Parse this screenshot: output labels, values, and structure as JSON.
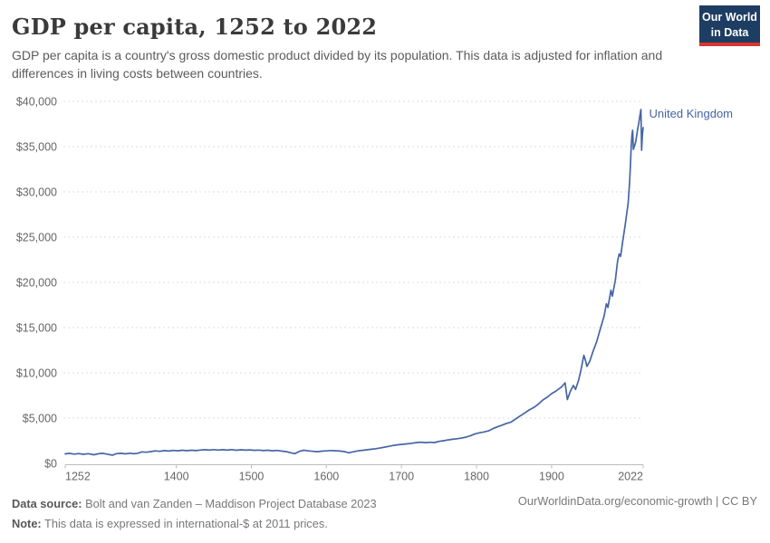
{
  "header": {
    "title": "GDP per capita, 1252 to 2022",
    "subtitle": "GDP per capita is a country's gross domestic product divided by its population. This data is adjusted for inflation and differences in living costs between countries.",
    "logo_line1": "Our World",
    "logo_line2": "in Data",
    "logo_bg": "#1d3d63",
    "logo_bar": "#d8352f"
  },
  "footer": {
    "data_source_label": "Data source:",
    "data_source": "Bolt and van Zanden – Maddison Project Database 2023",
    "note_label": "Note:",
    "note": "This data is expressed in international-$ at 2011 prices.",
    "attribution": "OurWorldinData.org/economic-growth | CC BY"
  },
  "chart_data": {
    "type": "line",
    "title": "GDP per capita, 1252 to 2022",
    "xlabel": "",
    "ylabel": "",
    "grid": "horizontal-dashed",
    "legend_position": "line-end-label",
    "x_axis": {
      "min": 1252,
      "max": 2022,
      "ticks": [
        {
          "v": 1252,
          "label": "1252"
        },
        {
          "v": 1400,
          "label": "1400"
        },
        {
          "v": 1500,
          "label": "1500"
        },
        {
          "v": 1600,
          "label": "1600"
        },
        {
          "v": 1700,
          "label": "1700"
        },
        {
          "v": 1800,
          "label": "1800"
        },
        {
          "v": 1900,
          "label": "1900"
        },
        {
          "v": 2022,
          "label": "2022"
        }
      ]
    },
    "y_axis": {
      "min": 0,
      "max": 40000,
      "ticks": [
        {
          "v": 0,
          "label": "$0"
        },
        {
          "v": 5000,
          "label": "$5,000"
        },
        {
          "v": 10000,
          "label": "$10,000"
        },
        {
          "v": 15000,
          "label": "$15,000"
        },
        {
          "v": 20000,
          "label": "$20,000"
        },
        {
          "v": 25000,
          "label": "$25,000"
        },
        {
          "v": 30000,
          "label": "$30,000"
        },
        {
          "v": 35000,
          "label": "$35,000"
        },
        {
          "v": 40000,
          "label": "$40,000"
        }
      ]
    },
    "series": [
      {
        "name": "United Kingdom",
        "color": "#4565a4",
        "points": [
          [
            1252,
            1050
          ],
          [
            1258,
            1110
          ],
          [
            1264,
            1020
          ],
          [
            1270,
            1080
          ],
          [
            1276,
            1000
          ],
          [
            1283,
            1070
          ],
          [
            1290,
            950
          ],
          [
            1296,
            1060
          ],
          [
            1302,
            1110
          ],
          [
            1308,
            1020
          ],
          [
            1315,
            900
          ],
          [
            1320,
            1070
          ],
          [
            1326,
            1110
          ],
          [
            1332,
            1050
          ],
          [
            1338,
            1120
          ],
          [
            1344,
            1060
          ],
          [
            1349,
            1120
          ],
          [
            1354,
            1270
          ],
          [
            1360,
            1230
          ],
          [
            1366,
            1300
          ],
          [
            1372,
            1380
          ],
          [
            1378,
            1330
          ],
          [
            1384,
            1410
          ],
          [
            1390,
            1360
          ],
          [
            1396,
            1430
          ],
          [
            1402,
            1390
          ],
          [
            1408,
            1450
          ],
          [
            1414,
            1400
          ],
          [
            1420,
            1450
          ],
          [
            1426,
            1410
          ],
          [
            1432,
            1470
          ],
          [
            1438,
            1510
          ],
          [
            1444,
            1460
          ],
          [
            1450,
            1520
          ],
          [
            1456,
            1470
          ],
          [
            1462,
            1510
          ],
          [
            1468,
            1460
          ],
          [
            1474,
            1520
          ],
          [
            1480,
            1450
          ],
          [
            1486,
            1500
          ],
          [
            1492,
            1460
          ],
          [
            1498,
            1490
          ],
          [
            1504,
            1440
          ],
          [
            1510,
            1470
          ],
          [
            1516,
            1410
          ],
          [
            1522,
            1450
          ],
          [
            1528,
            1390
          ],
          [
            1534,
            1430
          ],
          [
            1540,
            1360
          ],
          [
            1546,
            1300
          ],
          [
            1552,
            1180
          ],
          [
            1558,
            1070
          ],
          [
            1564,
            1330
          ],
          [
            1570,
            1450
          ],
          [
            1576,
            1380
          ],
          [
            1582,
            1330
          ],
          [
            1588,
            1290
          ],
          [
            1594,
            1350
          ],
          [
            1600,
            1380
          ],
          [
            1606,
            1420
          ],
          [
            1612,
            1390
          ],
          [
            1618,
            1360
          ],
          [
            1624,
            1300
          ],
          [
            1630,
            1170
          ],
          [
            1636,
            1280
          ],
          [
            1642,
            1380
          ],
          [
            1648,
            1440
          ],
          [
            1654,
            1500
          ],
          [
            1660,
            1560
          ],
          [
            1666,
            1620
          ],
          [
            1672,
            1710
          ],
          [
            1678,
            1800
          ],
          [
            1684,
            1890
          ],
          [
            1690,
            1990
          ],
          [
            1696,
            2060
          ],
          [
            1702,
            2110
          ],
          [
            1708,
            2160
          ],
          [
            1714,
            2220
          ],
          [
            1720,
            2300
          ],
          [
            1726,
            2340
          ],
          [
            1732,
            2290
          ],
          [
            1738,
            2330
          ],
          [
            1744,
            2300
          ],
          [
            1750,
            2430
          ],
          [
            1756,
            2500
          ],
          [
            1762,
            2590
          ],
          [
            1768,
            2660
          ],
          [
            1774,
            2720
          ],
          [
            1780,
            2790
          ],
          [
            1786,
            2900
          ],
          [
            1792,
            3060
          ],
          [
            1798,
            3260
          ],
          [
            1804,
            3380
          ],
          [
            1810,
            3470
          ],
          [
            1816,
            3590
          ],
          [
            1822,
            3840
          ],
          [
            1828,
            4040
          ],
          [
            1834,
            4220
          ],
          [
            1840,
            4420
          ],
          [
            1846,
            4560
          ],
          [
            1852,
            4900
          ],
          [
            1858,
            5230
          ],
          [
            1864,
            5560
          ],
          [
            1870,
            5900
          ],
          [
            1876,
            6160
          ],
          [
            1882,
            6520
          ],
          [
            1888,
            6980
          ],
          [
            1894,
            7300
          ],
          [
            1900,
            7700
          ],
          [
            1906,
            8000
          ],
          [
            1913,
            8430
          ],
          [
            1918,
            8900
          ],
          [
            1921,
            7050
          ],
          [
            1925,
            7960
          ],
          [
            1929,
            8610
          ],
          [
            1932,
            8170
          ],
          [
            1936,
            9190
          ],
          [
            1939,
            10260
          ],
          [
            1943,
            11940
          ],
          [
            1945,
            11420
          ],
          [
            1947,
            10710
          ],
          [
            1951,
            11320
          ],
          [
            1955,
            12340
          ],
          [
            1960,
            13420
          ],
          [
            1965,
            14900
          ],
          [
            1970,
            16290
          ],
          [
            1973,
            17640
          ],
          [
            1975,
            17230
          ],
          [
            1979,
            19130
          ],
          [
            1981,
            18480
          ],
          [
            1985,
            20260
          ],
          [
            1988,
            22380
          ],
          [
            1990,
            23140
          ],
          [
            1992,
            22870
          ],
          [
            1995,
            24660
          ],
          [
            1998,
            26310
          ],
          [
            2000,
            27580
          ],
          [
            2002,
            28720
          ],
          [
            2004,
            31200
          ],
          [
            2005,
            32900
          ],
          [
            2006,
            34800
          ],
          [
            2007,
            36300
          ],
          [
            2008,
            36800
          ],
          [
            2009,
            34700
          ],
          [
            2010,
            35000
          ],
          [
            2011,
            35200
          ],
          [
            2012,
            35500
          ],
          [
            2013,
            36000
          ],
          [
            2014,
            36600
          ],
          [
            2015,
            37100
          ],
          [
            2016,
            37500
          ],
          [
            2017,
            38100
          ],
          [
            2018,
            38600
          ],
          [
            2019,
            39100
          ],
          [
            2020,
            34600
          ],
          [
            2021,
            36400
          ],
          [
            2022,
            37100
          ]
        ]
      }
    ]
  }
}
